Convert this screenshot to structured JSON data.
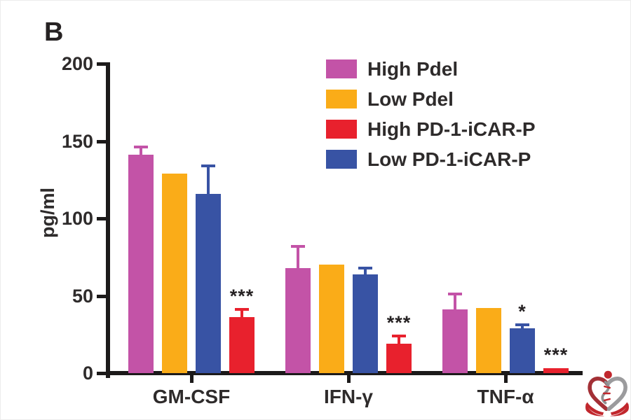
{
  "panel_label": "B",
  "chart_data": {
    "type": "bar",
    "title": "",
    "xlabel": "",
    "ylabel": "pg/ml",
    "ylim": [
      0,
      200
    ],
    "yticks": [
      0,
      50,
      100,
      150,
      200
    ],
    "categories": [
      "GM-CSF",
      "IFN-γ",
      "TNF-α"
    ],
    "grid": false,
    "legend_position": "top-right",
    "series": [
      {
        "name": "High Pdel",
        "color": "#C353A7",
        "values": [
          141,
          68,
          41
        ],
        "errors": [
          5,
          14,
          10
        ],
        "sig": [
          "",
          "",
          ""
        ]
      },
      {
        "name": "Low Pdel",
        "color": "#FAAC18",
        "values": [
          129,
          70,
          42
        ],
        "errors": [
          0,
          0,
          0
        ],
        "sig": [
          "",
          "",
          ""
        ]
      },
      {
        "name": "High PD-1-iCAR-P",
        "color": "#E8212D",
        "values": [
          36,
          19,
          3
        ],
        "errors": [
          5,
          5,
          0
        ],
        "sig": [
          "***",
          "***",
          "***"
        ]
      },
      {
        "name": "Low PD-1-iCAR-P",
        "color": "#3853A4",
        "values": [
          116,
          64,
          29
        ],
        "errors": [
          18,
          4,
          2
        ],
        "sig": [
          "",
          "",
          "*"
        ]
      }
    ],
    "plot_order": [
      0,
      1,
      3,
      2
    ],
    "error_bars": "upper only, colored per series",
    "annotations": [
      "***",
      "***",
      "*",
      "***"
    ]
  },
  "axis_color": "#1c1a1a",
  "watermark_icon": "heart-hands-dna-logo"
}
